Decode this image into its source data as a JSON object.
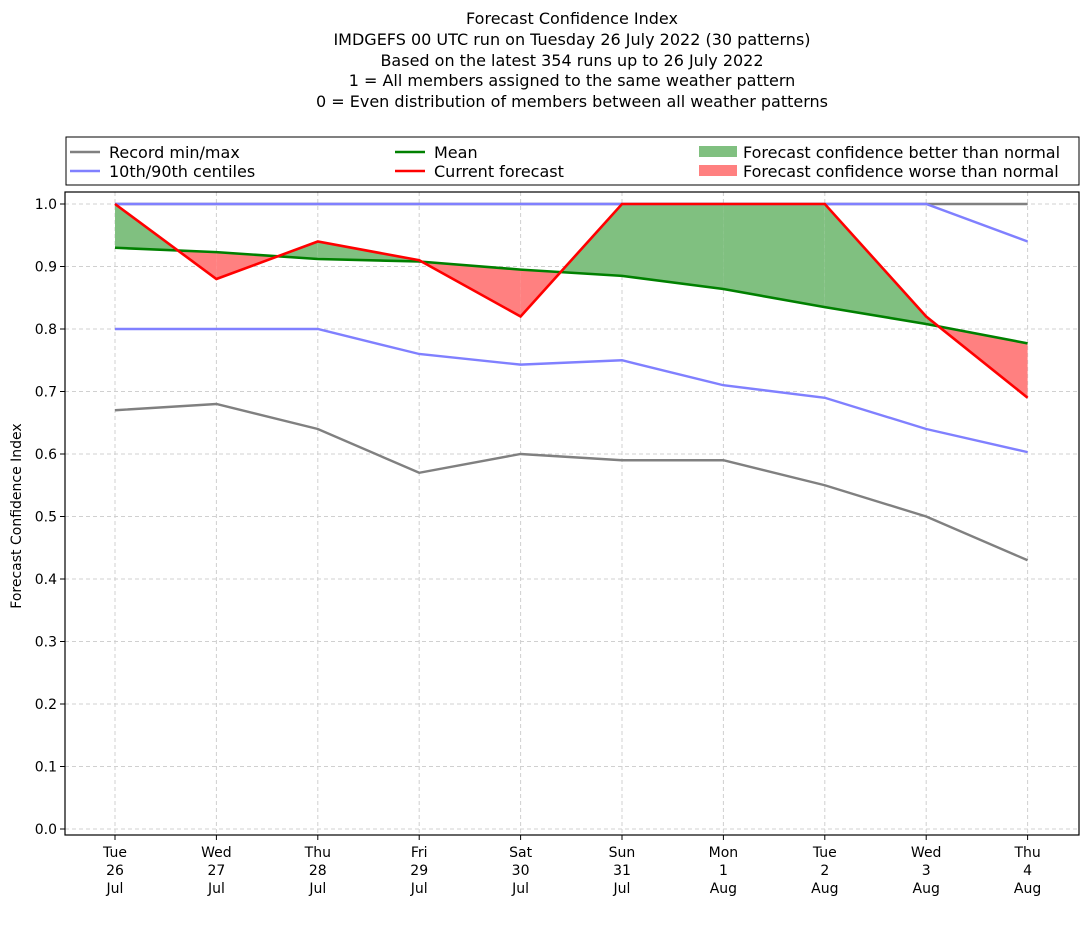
{
  "chart_data": {
    "type": "line",
    "title_lines": [
      "Forecast Confidence Index",
      "IMDGEFS 00 UTC run on Tuesday 26 July 2022 (30 patterns)",
      "Based on the latest 354 runs up to 26 July 2022",
      "1 = All members assigned to the same weather pattern",
      "0 = Even distribution of members between all weather patterns"
    ],
    "ylabel": "Forecast Confidence Index",
    "xlabel": "",
    "ylim": [
      0.0,
      1.0
    ],
    "yticks": [
      "0.0",
      "0.1",
      "0.2",
      "0.3",
      "0.4",
      "0.5",
      "0.6",
      "0.7",
      "0.8",
      "0.9",
      "1.0"
    ],
    "grid": true,
    "legend_placement": "top, above plot, 3 columns",
    "categories": [
      {
        "day": "Tue",
        "date": "26",
        "month": "Jul"
      },
      {
        "day": "Wed",
        "date": "27",
        "month": "Jul"
      },
      {
        "day": "Thu",
        "date": "28",
        "month": "Jul"
      },
      {
        "day": "Fri",
        "date": "29",
        "month": "Jul"
      },
      {
        "day": "Sat",
        "date": "30",
        "month": "Jul"
      },
      {
        "day": "Sun",
        "date": "31",
        "month": "Jul"
      },
      {
        "day": "Mon",
        "date": "1",
        "month": "Aug"
      },
      {
        "day": "Tue",
        "date": "2",
        "month": "Aug"
      },
      {
        "day": "Wed",
        "date": "3",
        "month": "Aug"
      },
      {
        "day": "Thu",
        "date": "4",
        "month": "Aug"
      }
    ],
    "series": [
      {
        "name": "Record min",
        "color": "#808080",
        "values": [
          0.67,
          0.68,
          0.64,
          0.57,
          0.6,
          0.59,
          0.59,
          0.55,
          0.5,
          0.43
        ]
      },
      {
        "name": "Record max",
        "color": "#808080",
        "values": [
          1.0,
          1.0,
          1.0,
          1.0,
          1.0,
          1.0,
          1.0,
          1.0,
          1.0,
          1.0
        ]
      },
      {
        "name": "10th centile",
        "color": "#8080ff",
        "values": [
          0.8,
          0.8,
          0.8,
          0.76,
          0.743,
          0.75,
          0.71,
          0.69,
          0.64,
          0.603
        ]
      },
      {
        "name": "90th centile",
        "color": "#8080ff",
        "values": [
          1.0,
          1.0,
          1.0,
          1.0,
          1.0,
          1.0,
          1.0,
          1.0,
          1.0,
          0.94
        ]
      },
      {
        "name": "Mean",
        "color": "#008000",
        "values": [
          0.93,
          0.923,
          0.912,
          0.908,
          0.895,
          0.885,
          0.864,
          0.835,
          0.808,
          0.777
        ]
      },
      {
        "name": "Current forecast",
        "color": "#ff0000",
        "values": [
          1.0,
          0.88,
          0.94,
          0.91,
          0.82,
          1.0,
          1.0,
          1.0,
          0.82,
          0.69
        ]
      }
    ],
    "fill_colors": {
      "better": "#80c080",
      "worse": "#ff8080"
    },
    "legend": [
      {
        "label": "Record min/max",
        "kind": "line",
        "color": "#808080"
      },
      {
        "label": "10th/90th centiles",
        "kind": "line",
        "color": "#8080ff"
      },
      {
        "label": "Mean",
        "kind": "line",
        "color": "#008000"
      },
      {
        "label": "Current forecast",
        "kind": "line",
        "color": "#ff0000"
      },
      {
        "label": "Forecast confidence better than normal",
        "kind": "patch",
        "color": "#80c080"
      },
      {
        "label": "Forecast confidence worse than normal",
        "kind": "patch",
        "color": "#ff8080"
      }
    ]
  }
}
